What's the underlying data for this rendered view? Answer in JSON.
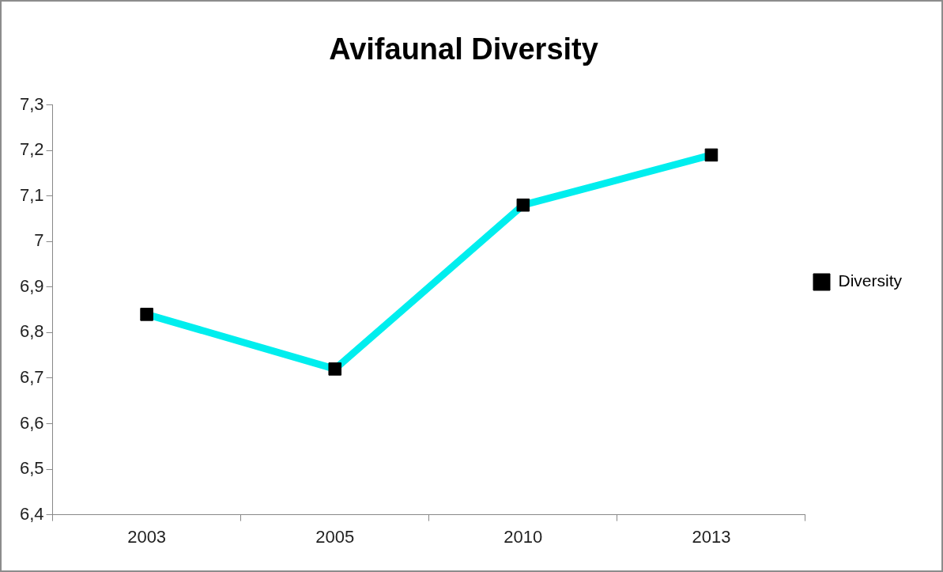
{
  "chart_data": {
    "type": "line",
    "title": "Avifaunal Diversity",
    "categories": [
      "2003",
      "2005",
      "2010",
      "2013"
    ],
    "series": [
      {
        "name": "Diversity",
        "color": "#00eeee",
        "values": [
          6.84,
          6.72,
          7.08,
          7.19
        ]
      }
    ],
    "ylim": [
      6.4,
      7.3
    ],
    "yticks": [
      {
        "value": 6.4,
        "label": "6,4"
      },
      {
        "value": 6.5,
        "label": "6,5"
      },
      {
        "value": 6.6,
        "label": "6,6"
      },
      {
        "value": 6.7,
        "label": "6,7"
      },
      {
        "value": 6.8,
        "label": "6,8"
      },
      {
        "value": 6.9,
        "label": "6,9"
      },
      {
        "value": 7,
        "label": "7"
      },
      {
        "value": 7.1,
        "label": "7,1"
      },
      {
        "value": 7.2,
        "label": "7,2"
      },
      {
        "value": 7.3,
        "label": "7,3"
      }
    ],
    "grid": false,
    "legend": "right",
    "marker": "square",
    "line_style": "solid"
  }
}
